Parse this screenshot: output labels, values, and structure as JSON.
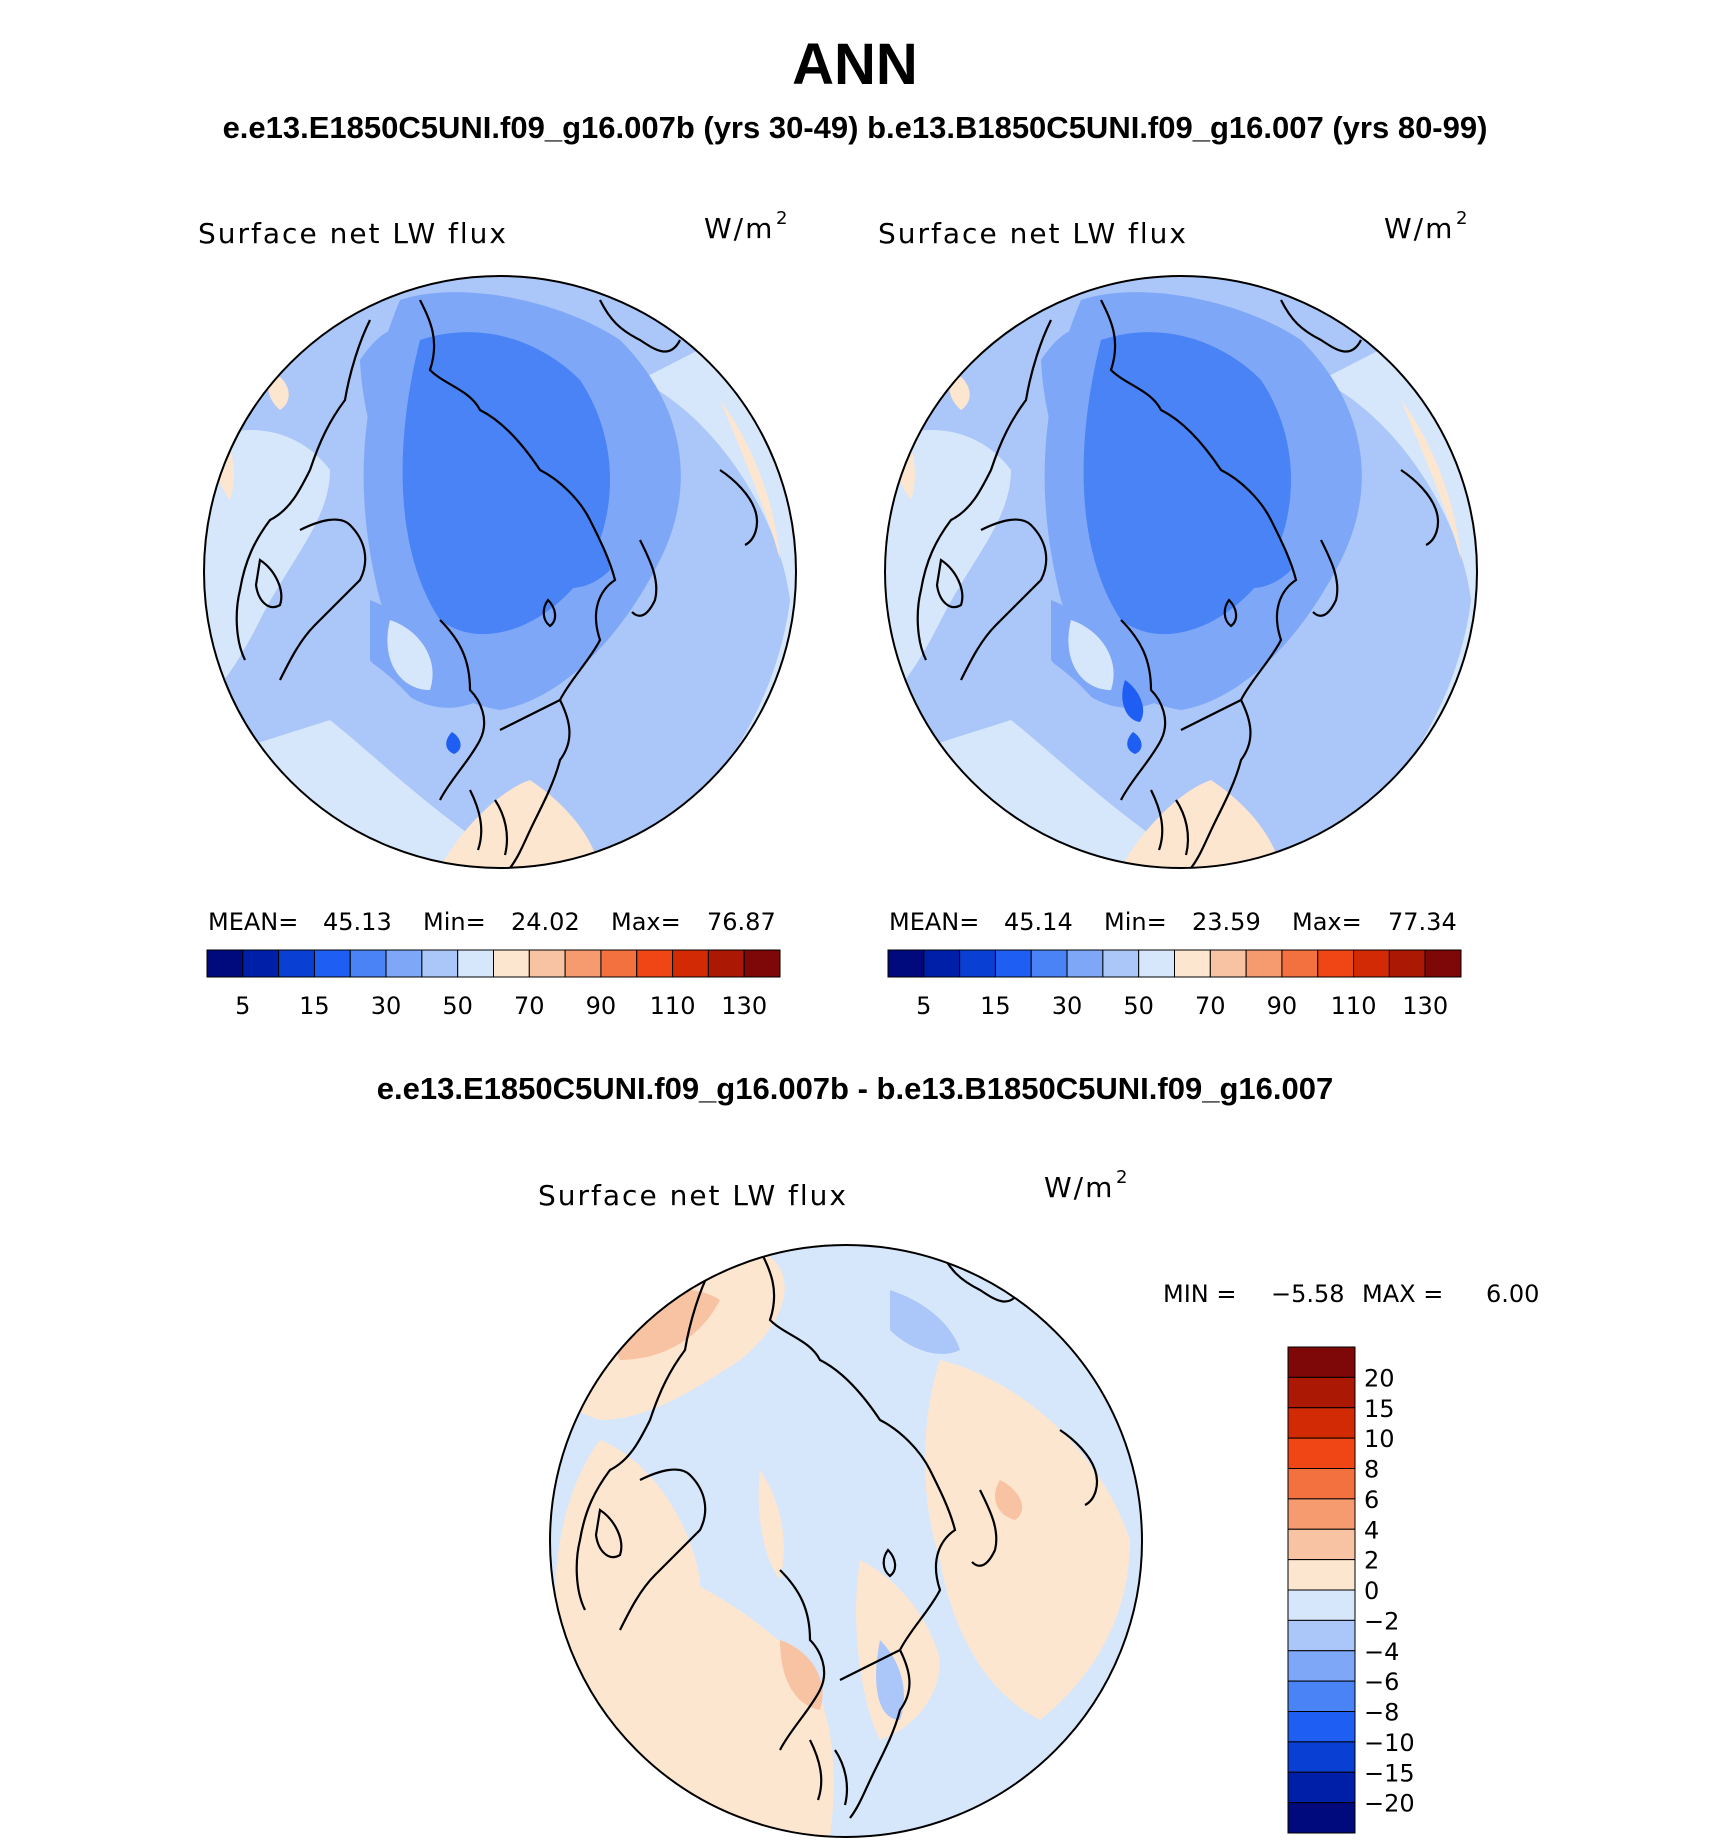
{
  "header": {
    "title": "ANN",
    "subtitle": "e.e13.E1850C5UNI.f09_g16.007b (yrs 30-49)  b.e13.B1850C5UNI.f09_g16.007 (yrs 80-99)",
    "diff_title": "e.e13.E1850C5UNI.f09_g16.007b - b.e13.B1850C5UNI.f09_g16.007"
  },
  "chart_data": [
    {
      "type": "heatmap",
      "projection": "north-polar-stereographic",
      "title": "Surface net LW flux",
      "units_base": "W/m",
      "units_exp": "2",
      "stats": {
        "mean_label": "MEAN=",
        "mean": "45.13",
        "min_label": "Min=",
        "min": "24.02",
        "max_label": "Max=",
        "max": "76.87"
      },
      "colorbar_ticks": [
        "5",
        "15",
        "30",
        "50",
        "70",
        "90",
        "110",
        "130"
      ],
      "dominant_range": [
        30,
        50
      ]
    },
    {
      "type": "heatmap",
      "projection": "north-polar-stereographic",
      "title": "Surface net LW flux",
      "units_base": "W/m",
      "units_exp": "2",
      "stats": {
        "mean_label": "MEAN=",
        "mean": "45.14",
        "min_label": "Min=",
        "min": "23.59",
        "max_label": "Max=",
        "max": "77.34"
      },
      "colorbar_ticks": [
        "5",
        "15",
        "30",
        "50",
        "70",
        "90",
        "110",
        "130"
      ],
      "dominant_range": [
        30,
        50
      ]
    },
    {
      "type": "heatmap",
      "projection": "north-polar-stereographic",
      "title": "Surface net LW flux",
      "units_base": "W/m",
      "units_exp": "2",
      "stats": {
        "min_label": "MIN =",
        "min": "−5.58",
        "max_label": "MAX =",
        "max": "6.00"
      },
      "colorbar_ticks": [
        "20",
        "15",
        "10",
        "8",
        "6",
        "4",
        "2",
        "0",
        "−2",
        "−4",
        "−6",
        "−8",
        "−10",
        "−15",
        "−20"
      ],
      "dominant_range": [
        -2,
        2
      ]
    }
  ],
  "colors": {
    "levels": [
      "#000a7d",
      "#001fa8",
      "#0a3fd4",
      "#1f5ef2",
      "#4a83f5",
      "#7ea7f7",
      "#abc6f8",
      "#d6e6fb",
      "#fde6d0",
      "#f8c3a3",
      "#f69a70",
      "#f3703f",
      "#f04515",
      "#d22a05",
      "#ab1804",
      "#7d0807"
    ],
    "coastline": "#000000"
  }
}
